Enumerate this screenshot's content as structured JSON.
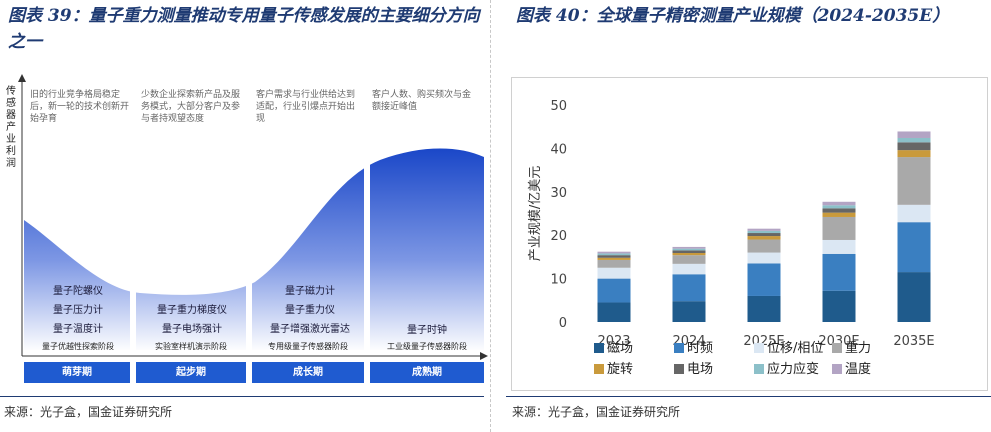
{
  "left": {
    "title": "图表 39：量子重力测量推动专用量子传感发展的主要细分方向之一",
    "y_axis_title": "传感器产业利润",
    "phases": [
      {
        "desc": "旧的行业竞争格局稳定后，新一轮的技术创新开始孕育",
        "stage": "量子优越性探索阶段",
        "name": "萌芽期",
        "products": [
          "量子陀螺仪",
          "量子压力计",
          "量子温度计"
        ]
      },
      {
        "desc": "少数企业探索新产品及服务模式，大部分客户及参与者持观望态度",
        "stage": "实验室样机演示阶段",
        "name": "起步期",
        "products": [
          "量子重力梯度仪",
          "量子电场强计"
        ]
      },
      {
        "desc": "客户需求与行业供给达到适配，行业引爆点开始出现",
        "stage": "专用级量子传感器阶段",
        "name": "成长期",
        "products": [
          "量子磁力计",
          "量子重力仪",
          "量子增强激光雷达"
        ]
      },
      {
        "desc": "客户人数、购买频次与金额接近峰值",
        "stage": "工业级量子传感器阶段",
        "name": "成熟期",
        "products": [
          "量子时钟"
        ]
      }
    ],
    "source": "来源：光子盒，国金证券研究所"
  },
  "right": {
    "title": "图表 40：全球量子精密测量产业规模（2024-2035E）",
    "source": "来源：光子盒，国金证券研究所"
  },
  "chart_data": {
    "type": "bar",
    "stacked": true,
    "categories": [
      "2023",
      "2024",
      "2025E",
      "2030E",
      "2035E"
    ],
    "category_labels": [
      "2023",
      "2024",
      "2025E",
      "2030E",
      "2035E"
    ],
    "ylabel": "产业规模/亿美元",
    "ylim": [
      0,
      50
    ],
    "yticks": [
      0,
      10,
      20,
      30,
      40,
      50
    ],
    "grid": false,
    "legend_position": "bottom",
    "series": [
      {
        "name": "磁场",
        "color": "#1f5b8c",
        "values": [
          4.5,
          4.8,
          6.0,
          7.2,
          11.5
        ]
      },
      {
        "name": "时频",
        "color": "#3a7fc1",
        "values": [
          5.5,
          6.2,
          7.5,
          8.5,
          11.5
        ]
      },
      {
        "name": "位移/相位",
        "color": "#dbe7f3",
        "values": [
          2.5,
          2.4,
          2.5,
          3.2,
          4.0
        ]
      },
      {
        "name": "重力",
        "color": "#a9a9a9",
        "values": [
          1.8,
          2.0,
          3.0,
          5.3,
          11.0
        ]
      },
      {
        "name": "旋转",
        "color": "#c99a3c",
        "values": [
          0.5,
          0.5,
          0.8,
          1.0,
          1.6
        ]
      },
      {
        "name": "电场",
        "color": "#666666",
        "values": [
          0.6,
          0.6,
          0.7,
          1.0,
          1.8
        ]
      },
      {
        "name": "应力应变",
        "color": "#8cc0c9",
        "values": [
          0.4,
          0.4,
          0.5,
          0.7,
          1.0
        ]
      },
      {
        "name": "温度",
        "color": "#b3a4c4",
        "values": [
          0.4,
          0.4,
          0.5,
          0.8,
          1.5
        ]
      }
    ]
  },
  "colors": {
    "title": "#1f3b73",
    "phase_box": "#1f5bd0"
  }
}
